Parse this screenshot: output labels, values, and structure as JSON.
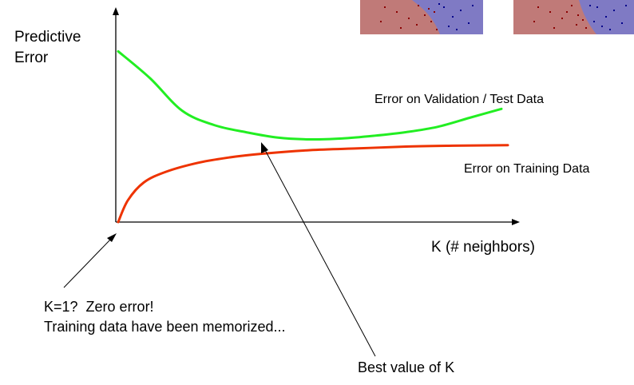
{
  "chart_data": {
    "type": "line",
    "ylabel_lines": [
      "Predictive",
      "Error"
    ],
    "xlabel": "K (# neighbors)",
    "series": [
      {
        "name": "Error on Validation / Test Data",
        "color": "#22ee22",
        "x": [
          1,
          2,
          3,
          4,
          5,
          6,
          7,
          8,
          9,
          10,
          11,
          12,
          13
        ],
        "y": [
          0.95,
          0.8,
          0.62,
          0.54,
          0.5,
          0.47,
          0.46,
          0.465,
          0.48,
          0.5,
          0.53,
          0.58,
          0.63
        ]
      },
      {
        "name": "Error on Training Data",
        "color": "#ee3300",
        "x": [
          1,
          1.3,
          1.8,
          2.5,
          3.5,
          4.5,
          5.5,
          7,
          8.5,
          10,
          11.5,
          13.2
        ],
        "y": [
          0.0,
          0.12,
          0.22,
          0.28,
          0.33,
          0.36,
          0.38,
          0.4,
          0.41,
          0.42,
          0.425,
          0.428
        ]
      }
    ]
  },
  "annotations": {
    "k1_line1": "K=1?  Zero error!",
    "k1_line2": "Training data have been memorized...",
    "best_k": "Best value of K"
  },
  "thumbnails": {
    "left_bg": "#c07a78",
    "right_bg": "#7f7ac4",
    "red_point_color": "#8b0000",
    "blue_point_color": "#00008b"
  }
}
